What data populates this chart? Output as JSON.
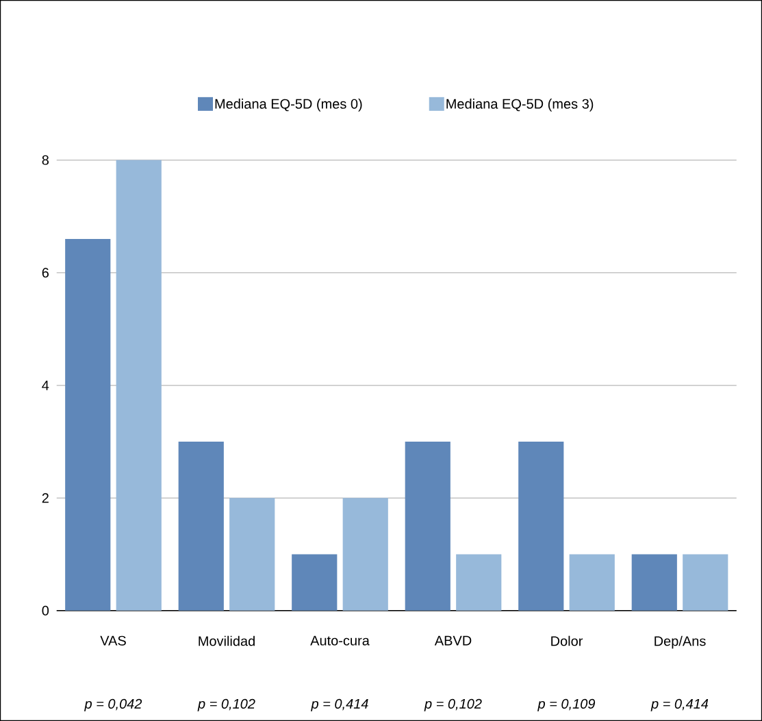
{
  "chart_data": {
    "type": "bar",
    "categories": [
      "VAS",
      "Movilidad",
      "Auto-cura",
      "ABVD",
      "Dolor",
      "Dep/Ans"
    ],
    "series": [
      {
        "name": "Mediana EQ-5D (mes 0)",
        "color": "#5f87b9",
        "values": [
          6.6,
          3,
          1,
          3,
          3,
          1
        ]
      },
      {
        "name": "Mediana EQ-5D (mes 3)",
        "color": "#97b9da",
        "values": [
          8,
          2,
          2,
          1,
          1,
          1
        ]
      }
    ],
    "ylim": [
      0,
      8
    ],
    "yticks": [
      0,
      2,
      4,
      6,
      8
    ],
    "grid": "y",
    "legend": "top",
    "annotations": [
      "p = 0,042",
      "p = 0,102",
      "p = 0,414",
      "p = 0,102",
      "p = 0,109",
      "p = 0,414"
    ]
  }
}
